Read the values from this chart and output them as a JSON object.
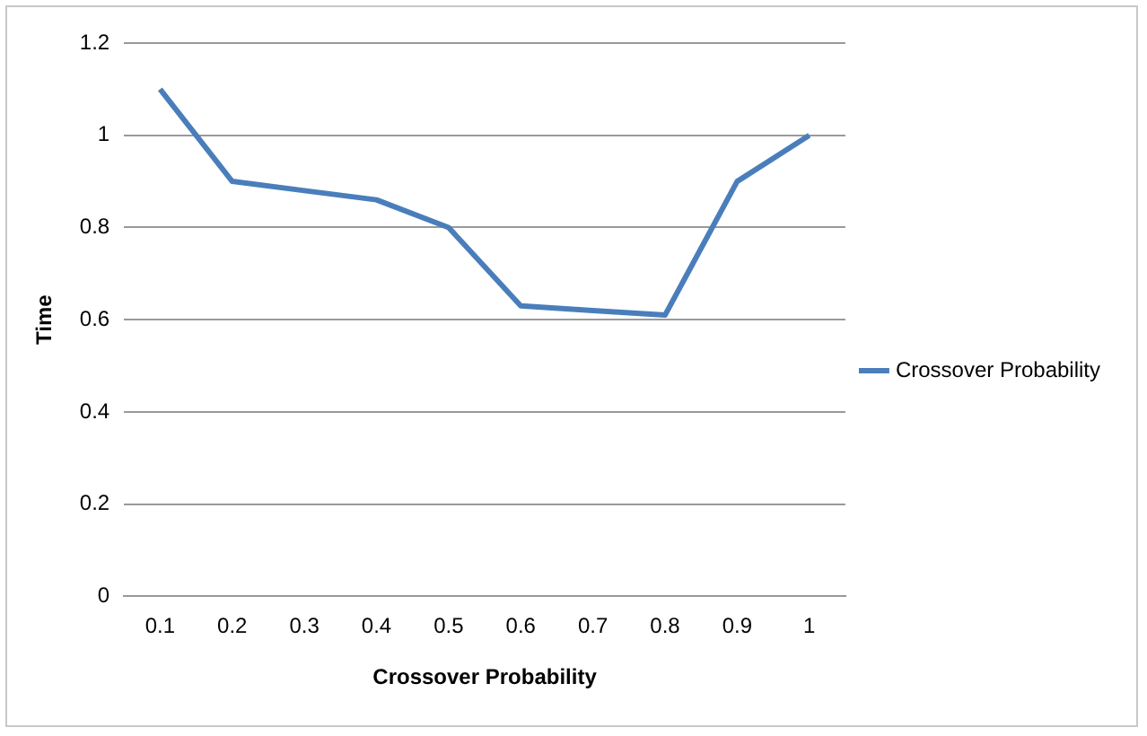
{
  "chart_data": {
    "type": "line",
    "xlabel": "Crossover Probability",
    "ylabel": "Time",
    "categories": [
      "0.1",
      "0.2",
      "0.3",
      "0.4",
      "0.5",
      "0.6",
      "0.7",
      "0.8",
      "0.9",
      "1"
    ],
    "series": [
      {
        "name": "Crossover Probability",
        "color": "#4a7ebb",
        "values": [
          1.1,
          0.9,
          0.88,
          0.86,
          0.8,
          0.63,
          0.62,
          0.61,
          0.9,
          1.0
        ]
      }
    ],
    "ylim": [
      0,
      1.2
    ],
    "yticks": [
      0,
      0.2,
      0.4,
      0.6,
      0.8,
      1,
      1.2
    ],
    "grid": "y",
    "legend": "right",
    "marker": "none"
  }
}
